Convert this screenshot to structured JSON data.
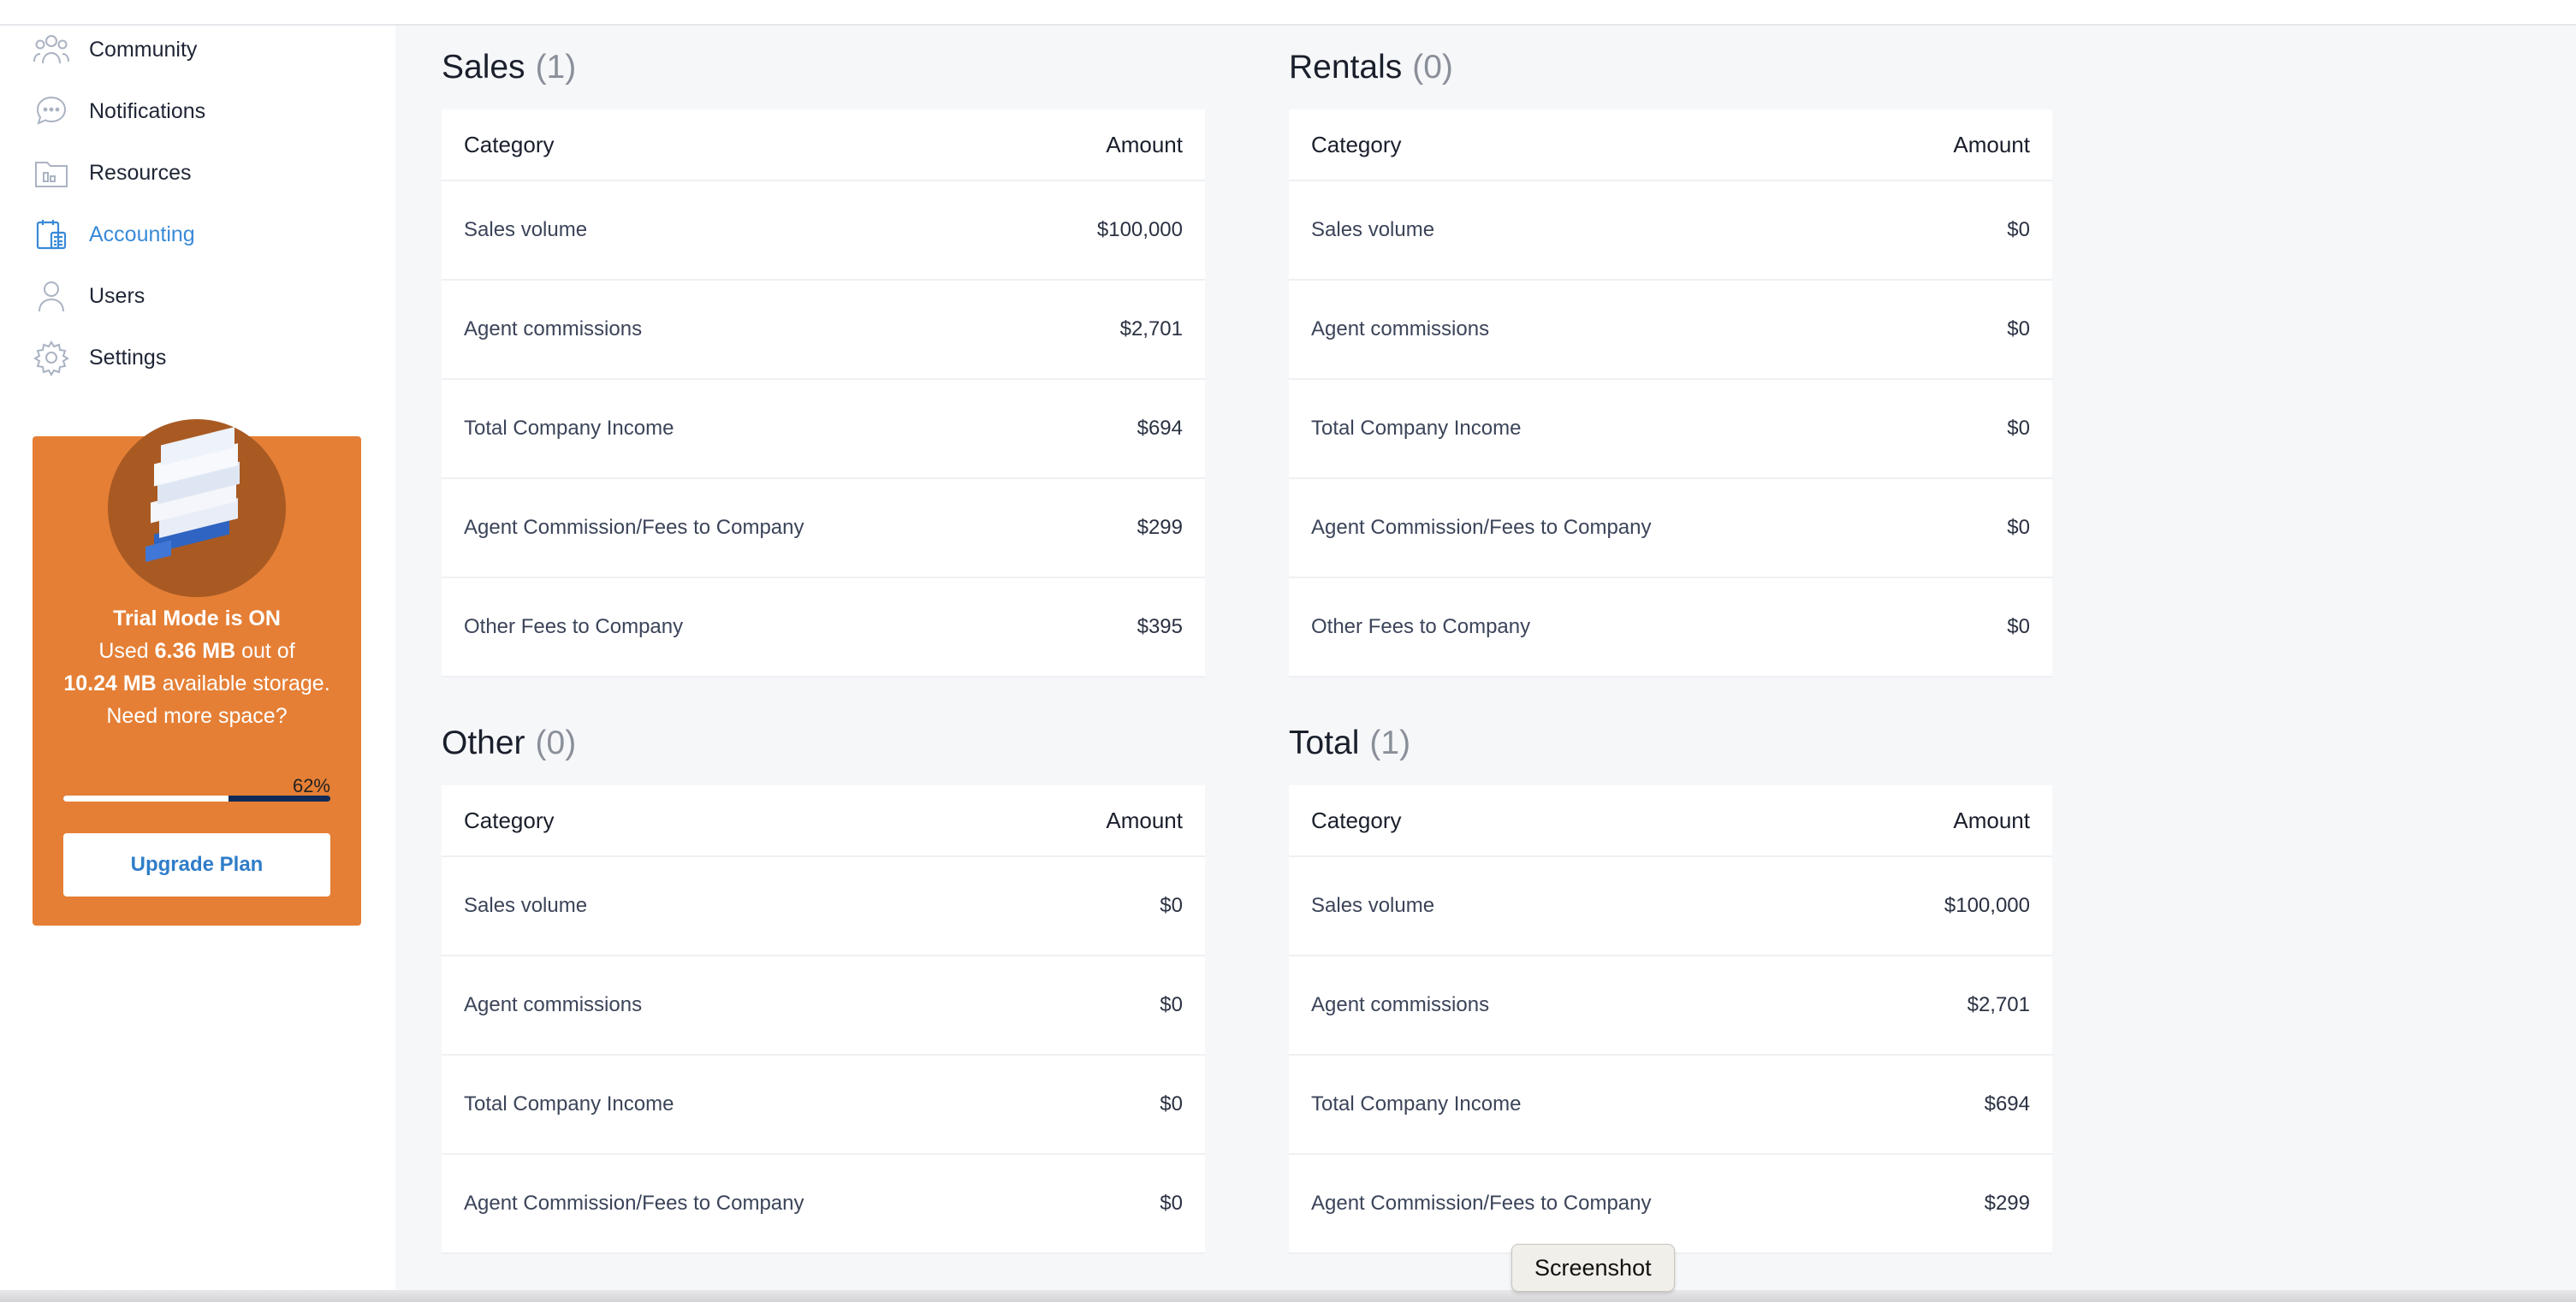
{
  "sidebar": {
    "items": [
      {
        "label": "Community",
        "icon": "community-icon"
      },
      {
        "label": "Notifications",
        "icon": "notifications-icon"
      },
      {
        "label": "Resources",
        "icon": "resources-icon"
      },
      {
        "label": "Accounting",
        "icon": "accounting-icon",
        "active": true
      },
      {
        "label": "Users",
        "icon": "users-icon"
      },
      {
        "label": "Settings",
        "icon": "settings-icon"
      }
    ],
    "accent_color": "#3a8ad8"
  },
  "trial": {
    "title": "Trial Mode is ON",
    "used_prefix": "Used",
    "used_value": "6.36 MB",
    "out_of": "out of",
    "total_value": "10.24 MB",
    "available_text": "available storage.",
    "question": "Need more space?",
    "percent_label": "62%",
    "percent": 62,
    "button_label": "Upgrade Plan",
    "card_color": "#e57f35"
  },
  "sections": [
    {
      "title": "Sales",
      "count": "(1)",
      "header": {
        "category": "Category",
        "amount": "Amount"
      },
      "rows": [
        {
          "category": "Sales volume",
          "amount": "$100,000"
        },
        {
          "category": "Agent commissions",
          "amount": "$2,701"
        },
        {
          "category": "Total Company Income",
          "amount": "$694"
        },
        {
          "category": "Agent Commission/Fees to Company",
          "amount": "$299"
        },
        {
          "category": "Other Fees to Company",
          "amount": "$395"
        }
      ]
    },
    {
      "title": "Rentals",
      "count": "(0)",
      "header": {
        "category": "Category",
        "amount": "Amount"
      },
      "rows": [
        {
          "category": "Sales volume",
          "amount": "$0"
        },
        {
          "category": "Agent commissions",
          "amount": "$0"
        },
        {
          "category": "Total Company Income",
          "amount": "$0"
        },
        {
          "category": "Agent Commission/Fees to Company",
          "amount": "$0"
        },
        {
          "category": "Other Fees to Company",
          "amount": "$0"
        }
      ]
    },
    {
      "title": "Other",
      "count": "(0)",
      "header": {
        "category": "Category",
        "amount": "Amount"
      },
      "rows": [
        {
          "category": "Sales volume",
          "amount": "$0"
        },
        {
          "category": "Agent commissions",
          "amount": "$0"
        },
        {
          "category": "Total Company Income",
          "amount": "$0"
        },
        {
          "category": "Agent Commission/Fees to Company",
          "amount": "$0"
        }
      ]
    },
    {
      "title": "Total",
      "count": "(1)",
      "header": {
        "category": "Category",
        "amount": "Amount"
      },
      "rows": [
        {
          "category": "Sales volume",
          "amount": "$100,000"
        },
        {
          "category": "Agent commissions",
          "amount": "$2,701"
        },
        {
          "category": "Total Company Income",
          "amount": "$694"
        },
        {
          "category": "Agent Commission/Fees to Company",
          "amount": "$299"
        }
      ]
    }
  ],
  "tooltip": {
    "text": "Screenshot"
  }
}
